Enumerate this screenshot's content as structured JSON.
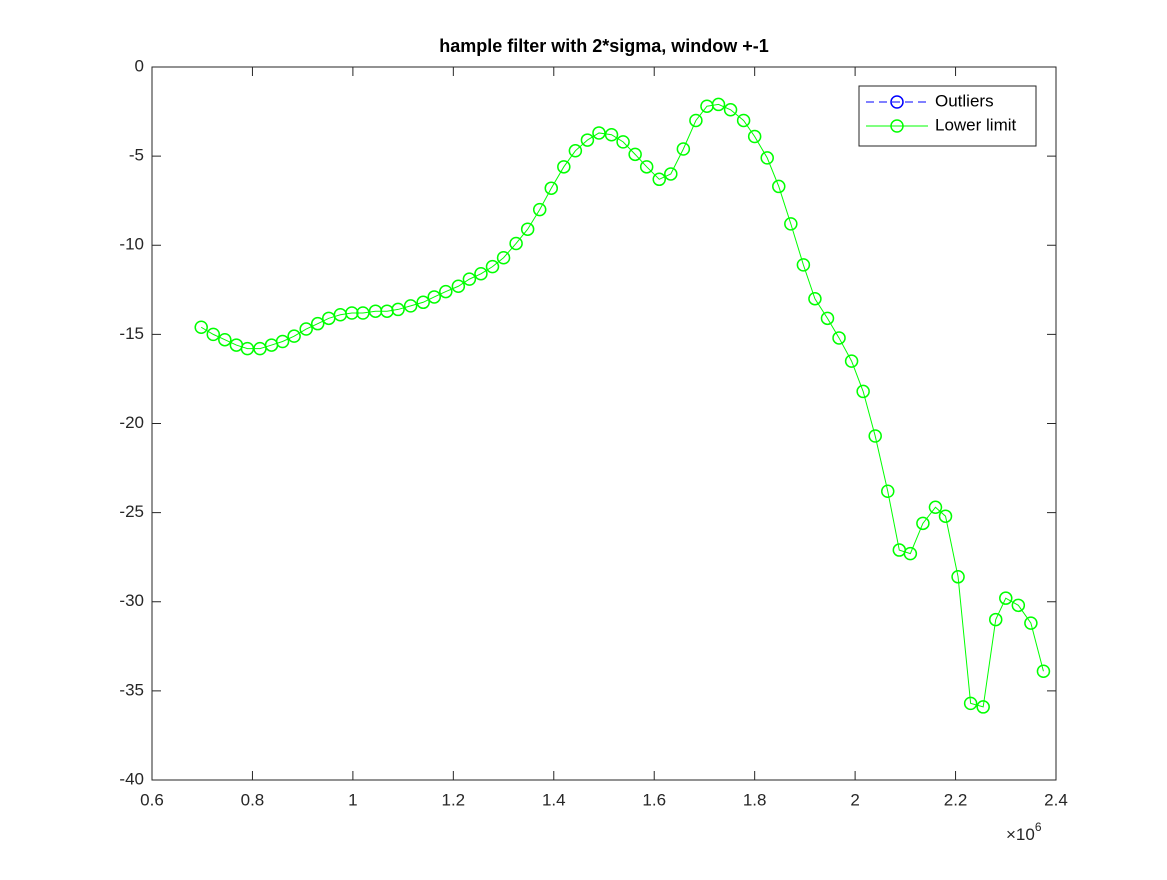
{
  "chart_data": {
    "type": "line",
    "title": "hample filter with 2*sigma, window +-1",
    "x": [
      0.698,
      0.722,
      0.745,
      0.768,
      0.79,
      0.815,
      0.838,
      0.86,
      0.883,
      0.907,
      0.93,
      0.952,
      0.975,
      0.998,
      1.02,
      1.045,
      1.068,
      1.09,
      1.115,
      1.14,
      1.162,
      1.185,
      1.21,
      1.232,
      1.255,
      1.278,
      1.3,
      1.325,
      1.348,
      1.372,
      1.395,
      1.42,
      1.443,
      1.467,
      1.49,
      1.515,
      1.538,
      1.562,
      1.585,
      1.61,
      1.633,
      1.658,
      1.683,
      1.705,
      1.728,
      1.752,
      1.778,
      1.8,
      1.825,
      1.848,
      1.872,
      1.897,
      1.92,
      1.945,
      1.968,
      1.993,
      2.016,
      2.04,
      2.065,
      2.088,
      2.11,
      2.135,
      2.16,
      2.18,
      2.205,
      2.23,
      2.255,
      2.28,
      2.3,
      2.325,
      2.35,
      2.375
    ],
    "series": [
      {
        "name": "Outliers",
        "color": "#0000ff",
        "line_style": "dashed",
        "marker": "circle",
        "values": [
          null,
          null,
          null,
          null,
          null,
          null,
          null,
          null,
          null,
          null,
          null,
          null,
          null,
          null,
          null,
          null,
          null,
          null,
          null,
          null,
          null,
          null,
          null,
          null,
          null,
          null,
          null,
          null,
          null,
          null,
          null,
          null,
          null,
          null,
          null,
          null,
          null,
          null,
          null,
          null,
          null,
          null,
          null,
          null,
          null,
          null,
          null,
          null,
          null,
          null,
          null,
          null,
          null,
          null,
          null,
          null,
          null,
          null,
          null,
          null,
          null,
          null,
          null,
          null,
          null,
          null,
          null,
          null,
          null,
          null,
          null,
          null
        ]
      },
      {
        "name": "Lower limit",
        "color": "#00ff00",
        "line_style": "solid",
        "marker": "circle",
        "values": [
          -14.6,
          -15.0,
          -15.3,
          -15.6,
          -15.8,
          -15.8,
          -15.6,
          -15.4,
          -15.1,
          -14.7,
          -14.4,
          -14.1,
          -13.9,
          -13.8,
          -13.8,
          -13.7,
          -13.7,
          -13.6,
          -13.4,
          -13.2,
          -12.9,
          -12.6,
          -12.3,
          -11.9,
          -11.6,
          -11.2,
          -10.7,
          -9.9,
          -9.1,
          -8.0,
          -6.8,
          -5.6,
          -4.7,
          -4.1,
          -3.7,
          -3.8,
          -4.2,
          -4.9,
          -5.6,
          -6.3,
          -6.0,
          -4.6,
          -3.0,
          -2.2,
          -2.1,
          -2.4,
          -3.0,
          -3.9,
          -5.1,
          -6.7,
          -8.8,
          -11.1,
          -13.0,
          -14.1,
          -15.2,
          -16.5,
          -18.2,
          -20.7,
          -23.8,
          -27.1,
          -27.3,
          -25.6,
          -24.7,
          -25.2,
          -28.6,
          -35.7,
          -35.9,
          -31.0,
          -29.8,
          -30.2,
          -31.2,
          -33.9
        ]
      }
    ],
    "xlim": [
      0.6,
      2.4
    ],
    "xticks": [
      0.6,
      0.8,
      1,
      1.2,
      1.4,
      1.6,
      1.8,
      2,
      2.2,
      2.4
    ],
    "x_exponent": {
      "base": "×10",
      "power": "6"
    },
    "ylim": [
      -40,
      0
    ],
    "yticks": [
      0,
      -5,
      -10,
      -15,
      -20,
      -25,
      -30,
      -35,
      -40
    ],
    "grid": false,
    "legend": "top-right"
  }
}
